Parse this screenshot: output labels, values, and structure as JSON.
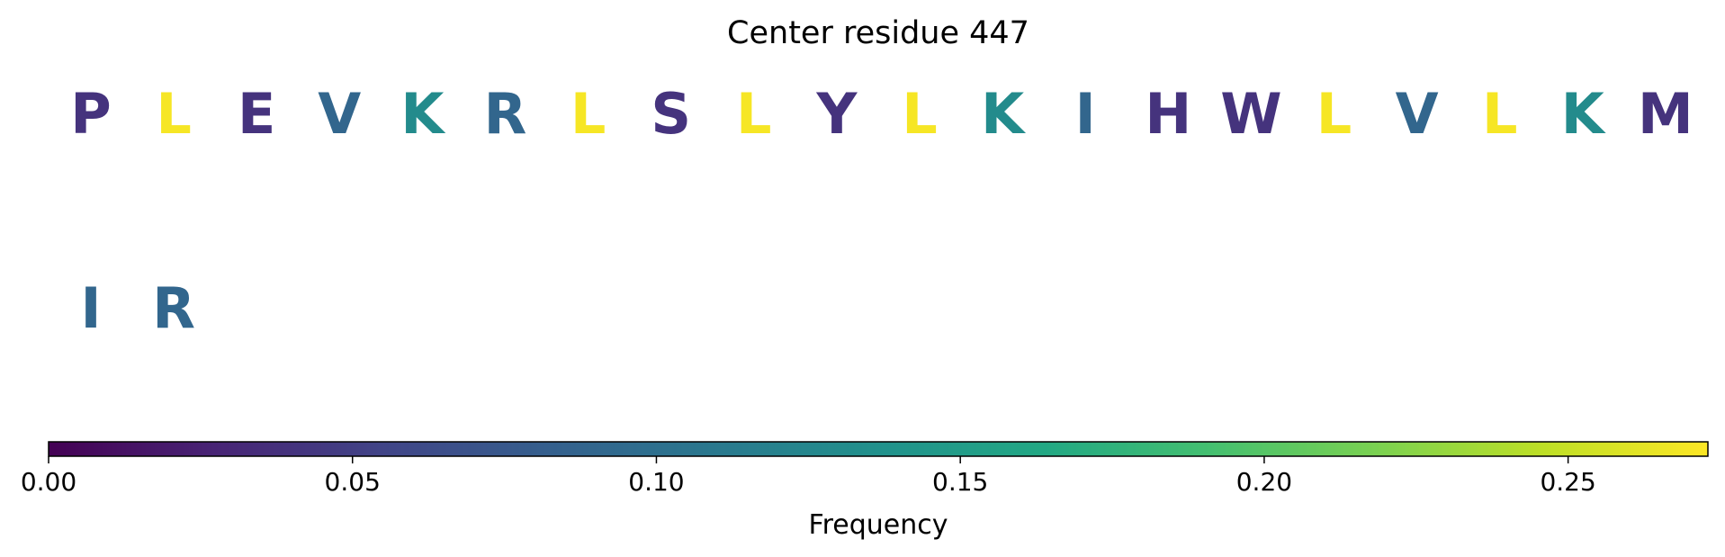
{
  "title": "Center residue 447",
  "chart_data": {
    "type": "heatmap",
    "title": "Center residue 447",
    "grid": false,
    "rows": [
      [
        {
          "residue": "P",
          "frequency": 0.04
        },
        {
          "residue": "L",
          "frequency": 0.27
        },
        {
          "residue": "E",
          "frequency": 0.04
        },
        {
          "residue": "V",
          "frequency": 0.09
        },
        {
          "residue": "K",
          "frequency": 0.13
        },
        {
          "residue": "R",
          "frequency": 0.09
        },
        {
          "residue": "L",
          "frequency": 0.27
        },
        {
          "residue": "S",
          "frequency": 0.04
        },
        {
          "residue": "L",
          "frequency": 0.27
        },
        {
          "residue": "Y",
          "frequency": 0.04
        },
        {
          "residue": "L",
          "frequency": 0.27
        },
        {
          "residue": "K",
          "frequency": 0.13
        },
        {
          "residue": "I",
          "frequency": 0.09
        },
        {
          "residue": "H",
          "frequency": 0.04
        },
        {
          "residue": "W",
          "frequency": 0.04
        },
        {
          "residue": "L",
          "frequency": 0.27
        },
        {
          "residue": "V",
          "frequency": 0.09
        },
        {
          "residue": "L",
          "frequency": 0.27
        },
        {
          "residue": "K",
          "frequency": 0.13
        },
        {
          "residue": "M",
          "frequency": 0.04
        }
      ],
      [
        {
          "residue": "I",
          "frequency": 0.09
        },
        {
          "residue": "R",
          "frequency": 0.09
        }
      ]
    ],
    "colorbar": {
      "label": "Frequency",
      "colormap": "viridis",
      "range": [
        0,
        0.273
      ],
      "ticks": [
        0.0,
        0.05,
        0.1,
        0.15,
        0.2,
        0.25
      ],
      "tick_labels": [
        "0.00",
        "0.05",
        "0.10",
        "0.15",
        "0.20",
        "0.25"
      ]
    }
  }
}
